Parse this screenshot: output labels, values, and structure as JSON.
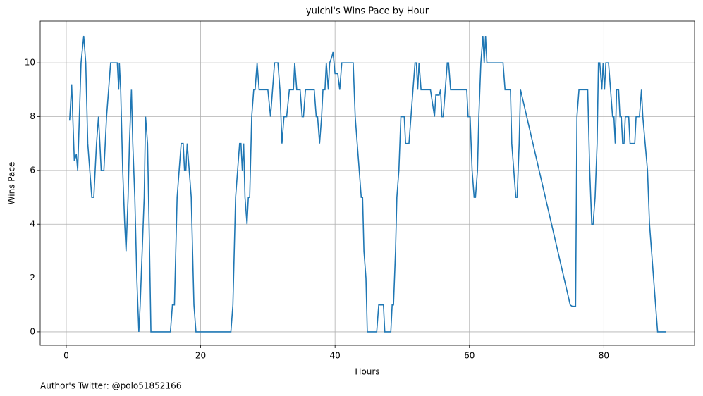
{
  "chart_data": {
    "type": "line",
    "title": "yuichi's Wins Pace by Hour",
    "xlabel": "Hours",
    "ylabel": "Wins Pace",
    "footnote": "Author's Twitter: @polo51852166",
    "xlim": [
      -3.88,
      93.5
    ],
    "ylim": [
      -0.5,
      11.55
    ],
    "xticks": [
      0,
      20,
      40,
      60,
      80
    ],
    "yticks": [
      0,
      2,
      4,
      6,
      8,
      10
    ],
    "grid": true,
    "series": [
      {
        "name": "Wins Pace",
        "color": "#1f77b4",
        "x": [
          0.5,
          0.8,
          1.2,
          1.5,
          1.7,
          2.2,
          2.6,
          2.9,
          3.2,
          3.5,
          3.8,
          4.1,
          4.5,
          4.8,
          5.0,
          5.2,
          5.6,
          6.0,
          6.3,
          6.6,
          7.6,
          7.8,
          7.9,
          8.1,
          8.4,
          8.7,
          8.9,
          9.2,
          9.4,
          9.7,
          9.9,
          10.2,
          10.5,
          10.8,
          11.0,
          11.3,
          11.6,
          11.8,
          12.1,
          12.4,
          12.6,
          15.5,
          15.8,
          16.1,
          16.5,
          16.8,
          17.1,
          17.4,
          17.6,
          17.8,
          18.0,
          18.3,
          18.6,
          19.0,
          19.3,
          24.5,
          24.8,
          25.2,
          25.5,
          25.8,
          26.0,
          26.2,
          26.4,
          26.6,
          26.9,
          27.1,
          27.3,
          27.6,
          27.9,
          28.1,
          28.4,
          28.7,
          30.0,
          30.4,
          30.7,
          31.0,
          31.5,
          31.8,
          32.1,
          32.4,
          32.8,
          33.2,
          33.8,
          34.0,
          34.3,
          34.8,
          35.1,
          35.3,
          35.6,
          36.9,
          37.2,
          37.4,
          37.7,
          38.0,
          38.2,
          38.5,
          38.7,
          39.0,
          39.2,
          39.5,
          39.7,
          40.0,
          40.4,
          40.7,
          41.0,
          42.7,
          43.0,
          43.3,
          43.6,
          43.9,
          44.1,
          44.3,
          44.6,
          44.8,
          46.2,
          46.5,
          47.2,
          47.4,
          48.3,
          48.5,
          48.7,
          49.0,
          49.2,
          49.5,
          49.8,
          50.3,
          50.5,
          51.0,
          51.3,
          51.6,
          51.9,
          52.1,
          52.3,
          52.5,
          52.8,
          54.2,
          54.5,
          54.8,
          55.0,
          55.5,
          55.7,
          55.9,
          56.1,
          56.4,
          56.7,
          56.9,
          57.2,
          59.6,
          59.8,
          60.1,
          60.4,
          60.7,
          60.9,
          61.2,
          61.4,
          61.7,
          62.0,
          62.2,
          62.4,
          62.6,
          65.0,
          65.3,
          66.1,
          66.3,
          66.6,
          66.9,
          67.1,
          67.4,
          67.6,
          75.0,
          75.3,
          75.8,
          76.0,
          76.3,
          77.6,
          77.9,
          78.2,
          78.4,
          78.7,
          79.0,
          79.2,
          79.4,
          79.7,
          79.9,
          80.1,
          80.3,
          80.7,
          81.0,
          81.3,
          81.5,
          81.7,
          81.9,
          82.2,
          82.4,
          82.6,
          82.8,
          83.0,
          83.2,
          83.7,
          83.9,
          84.6,
          84.8,
          85.3,
          85.6,
          85.8,
          86.5,
          86.8,
          87.4,
          87.7,
          88.0,
          89.2
        ],
        "values": [
          7.85,
          9.2,
          6.35,
          6.6,
          6.0,
          10,
          11,
          10,
          7,
          6,
          5,
          5,
          7,
          8,
          7,
          6,
          6,
          8,
          9,
          10,
          10,
          9,
          10,
          9,
          6,
          4,
          3,
          5,
          7,
          9,
          7,
          5,
          2,
          0,
          1,
          3,
          5,
          8,
          7,
          3,
          0,
          0,
          1,
          1,
          5,
          6,
          7,
          7,
          6,
          6,
          7,
          6,
          5,
          1,
          0,
          0,
          1,
          5,
          6,
          7,
          7,
          6,
          7,
          5,
          4,
          5,
          5,
          8,
          9,
          9,
          10,
          9,
          9,
          8,
          9,
          10,
          10,
          9,
          7,
          8,
          8,
          9,
          9,
          10,
          9,
          9,
          8,
          8,
          9,
          9,
          8,
          8,
          7,
          8,
          9,
          9,
          10,
          9,
          10,
          10.2,
          10.4,
          9.6,
          9.6,
          9,
          10,
          10,
          8,
          7,
          6,
          5,
          5,
          3,
          2,
          0,
          0,
          1,
          1,
          0,
          0,
          1,
          1,
          3,
          5,
          6,
          8,
          8,
          7,
          7,
          8,
          9,
          10,
          10,
          9,
          10,
          9,
          9,
          8.5,
          8,
          8.8,
          8.8,
          9,
          8,
          8,
          9,
          10,
          10,
          9,
          9,
          8,
          8,
          6,
          5,
          5,
          6,
          8,
          10,
          11,
          10,
          11,
          10,
          10,
          9,
          9,
          7,
          6,
          5,
          5,
          7,
          9,
          1,
          0.95,
          0.95,
          8,
          9,
          9,
          6,
          4,
          4,
          5,
          7,
          10,
          10,
          9,
          10,
          9,
          10,
          10,
          9,
          8,
          8,
          7,
          9,
          9,
          8,
          8,
          7,
          7,
          8,
          8,
          7,
          7,
          8,
          8,
          9,
          8,
          6,
          4,
          2,
          1,
          0,
          0
        ]
      }
    ]
  }
}
